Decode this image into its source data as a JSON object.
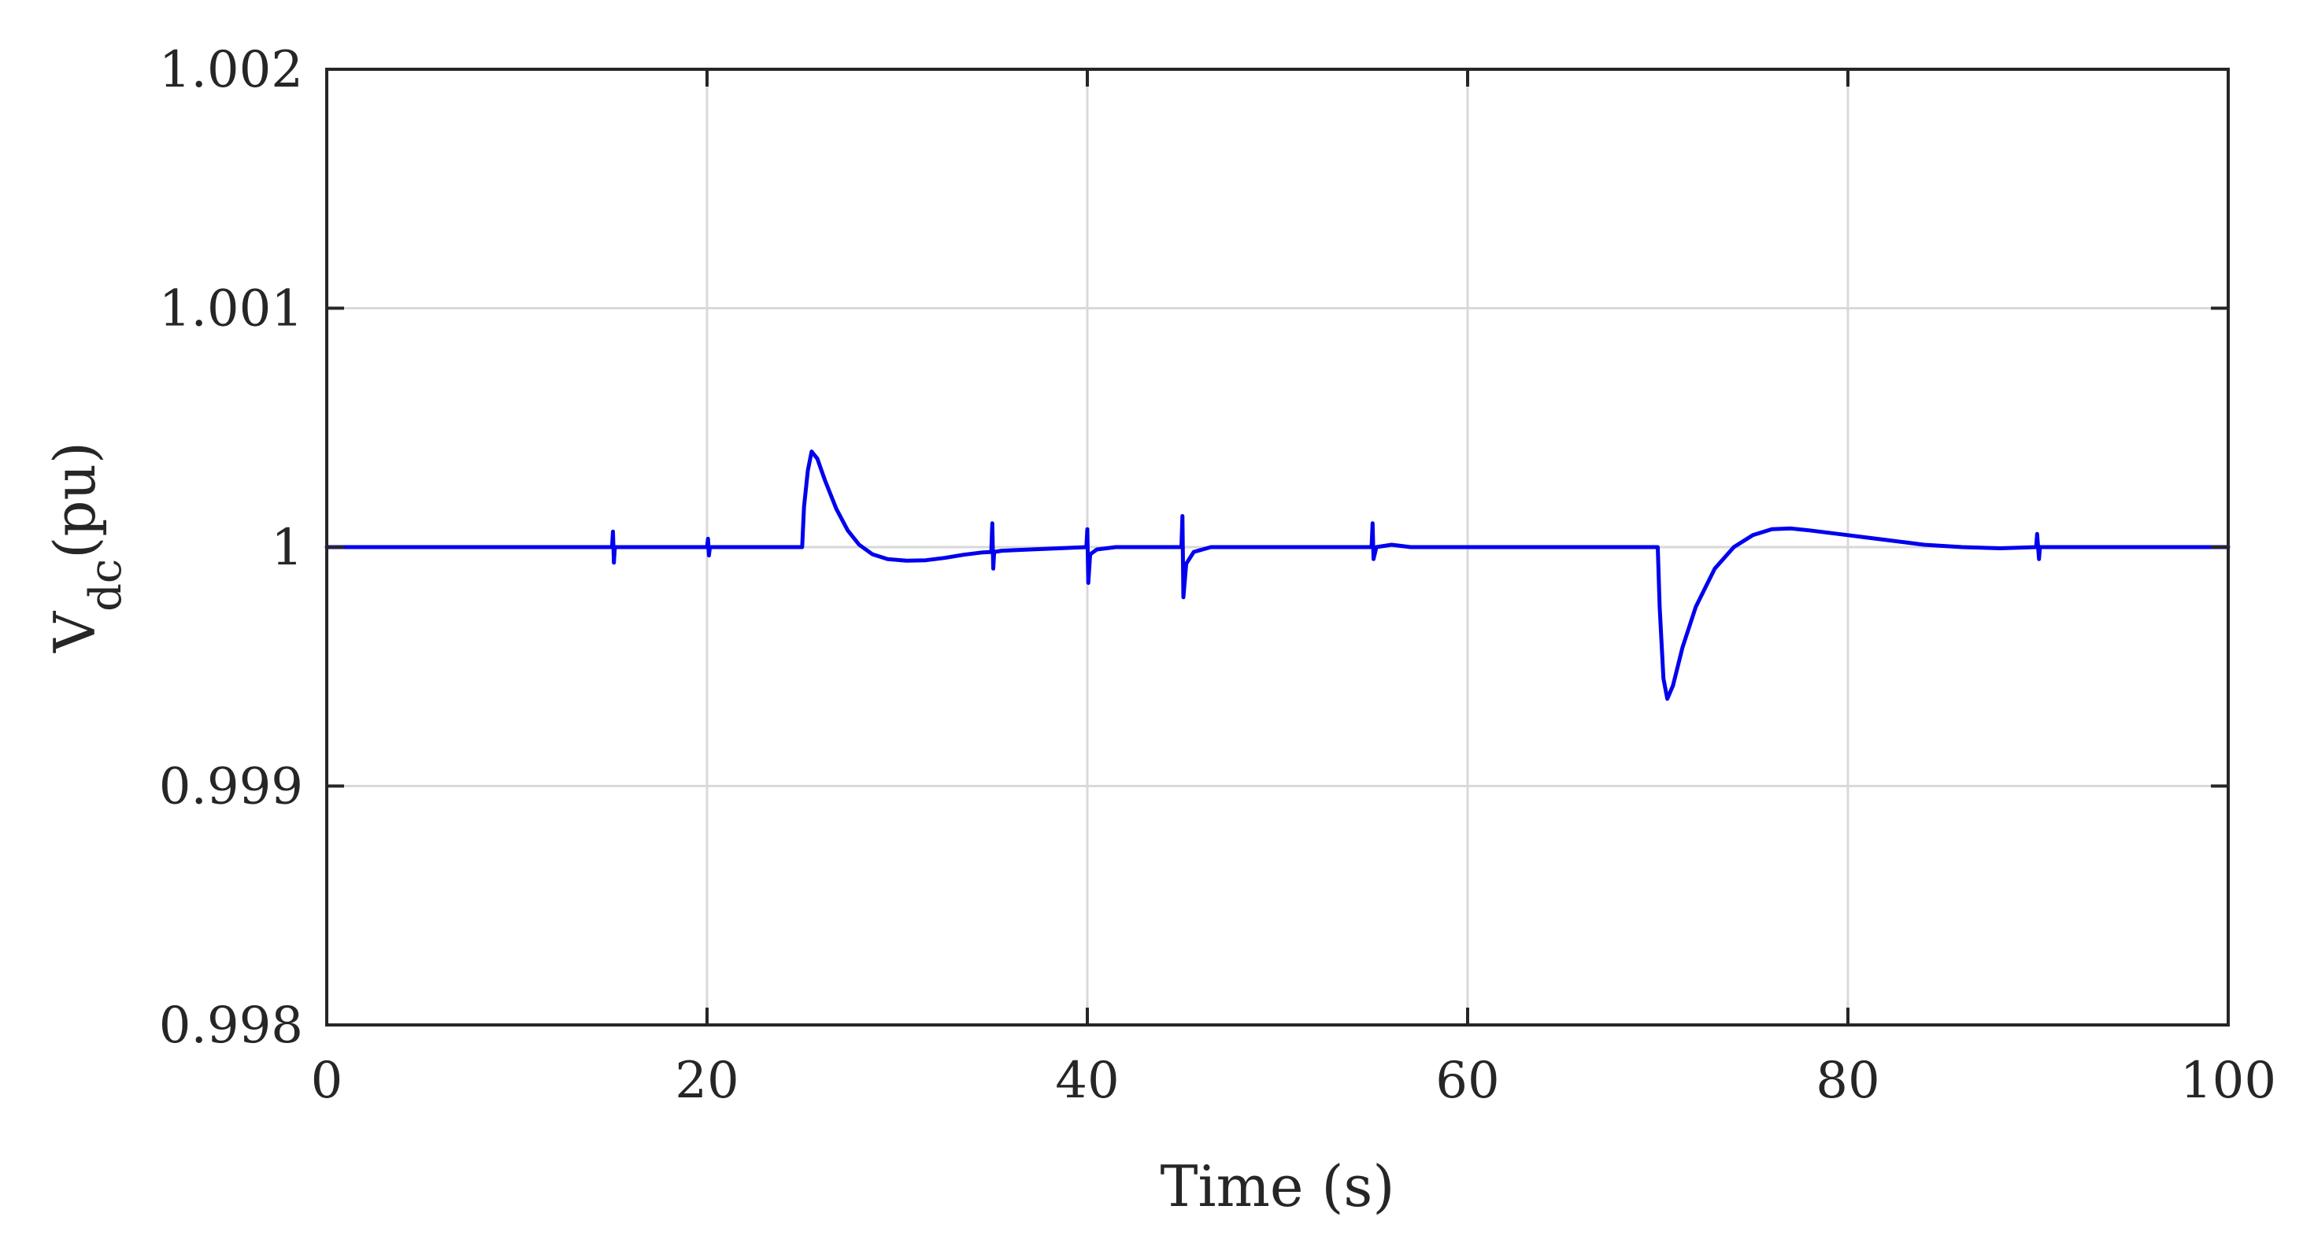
{
  "chart_data": {
    "type": "line",
    "title": "",
    "xlabel": "Time (s)",
    "ylabel": {
      "main": "V",
      "subscript": "dc",
      "unit": "(pu)"
    },
    "xlim": [
      0,
      100
    ],
    "ylim": [
      0.998,
      1.002
    ],
    "xticks": [
      0,
      20,
      40,
      60,
      80,
      100
    ],
    "xtick_labels": [
      "0",
      "20",
      "40",
      "60",
      "80",
      "100"
    ],
    "yticks": [
      0.998,
      0.999,
      1,
      1.001,
      1.002
    ],
    "ytick_labels": [
      "0.998",
      "0.999",
      "1",
      "1.001",
      "1.002"
    ],
    "grid": true,
    "legend": "none",
    "colors": {
      "series": "#0000ee",
      "grid": "#d9d9d9",
      "axes": "#262626"
    },
    "series": [
      {
        "color": "#0000ee",
        "points": [
          [
            0,
            1.0
          ],
          [
            14.9,
            1.0
          ],
          [
            15.0,
            1.0
          ],
          [
            15.05,
            1.000065
          ],
          [
            15.1,
            0.999935
          ],
          [
            15.15,
            1.0
          ],
          [
            15.5,
            1.0
          ],
          [
            19.9,
            1.0
          ],
          [
            20.0,
            1.0
          ],
          [
            20.05,
            1.000035
          ],
          [
            20.1,
            0.999965
          ],
          [
            20.15,
            1.0
          ],
          [
            24.9,
            1.0
          ],
          [
            25.0,
            1.0
          ],
          [
            25.1,
            1.00017
          ],
          [
            25.3,
            1.00032
          ],
          [
            25.5,
            1.0004
          ],
          [
            25.8,
            1.00037
          ],
          [
            26.2,
            1.00028
          ],
          [
            26.8,
            1.00016
          ],
          [
            27.4,
            1.00007
          ],
          [
            28.0,
            1.00001
          ],
          [
            28.7,
            0.99997
          ],
          [
            29.5,
            0.99995
          ],
          [
            30.5,
            0.999943
          ],
          [
            31.5,
            0.999945
          ],
          [
            32.5,
            0.999955
          ],
          [
            33.5,
            0.999968
          ],
          [
            34.5,
            0.999978
          ],
          [
            34.95,
            0.99998
          ],
          [
            35.0,
            1.0001
          ],
          [
            35.05,
            0.99991
          ],
          [
            35.1,
            0.99998
          ],
          [
            35.5,
            0.999985
          ],
          [
            37.0,
            0.99999
          ],
          [
            38.5,
            0.999995
          ],
          [
            39.95,
            1.0
          ],
          [
            40.0,
            1.000075
          ],
          [
            40.05,
            0.99985
          ],
          [
            40.15,
            0.99997
          ],
          [
            40.5,
            0.99999
          ],
          [
            41.5,
            1.0
          ],
          [
            44.95,
            1.0
          ],
          [
            45.0,
            1.00013
          ],
          [
            45.05,
            0.99979
          ],
          [
            45.2,
            0.99993
          ],
          [
            45.6,
            0.99998
          ],
          [
            46.5,
            1.0
          ],
          [
            54.95,
            1.0
          ],
          [
            55.0,
            1.0001
          ],
          [
            55.05,
            0.99995
          ],
          [
            55.2,
            1.0
          ],
          [
            56.0,
            1.00001
          ],
          [
            57.0,
            1.0
          ],
          [
            69.9,
            1.0
          ],
          [
            70.0,
            1.0
          ],
          [
            70.1,
            0.99975
          ],
          [
            70.3,
            0.99945
          ],
          [
            70.5,
            0.999365
          ],
          [
            70.8,
            0.99942
          ],
          [
            71.3,
            0.99958
          ],
          [
            72.0,
            0.99975
          ],
          [
            73.0,
            0.99991
          ],
          [
            74.0,
            1.0
          ],
          [
            75.0,
            1.00005
          ],
          [
            76.0,
            1.000075
          ],
          [
            77.0,
            1.000078
          ],
          [
            78.0,
            1.00007
          ],
          [
            79.0,
            1.00006
          ],
          [
            80.0,
            1.00005
          ],
          [
            81.0,
            1.00004
          ],
          [
            82.0,
            1.00003
          ],
          [
            83.0,
            1.00002
          ],
          [
            84.0,
            1.00001
          ],
          [
            85.0,
            1.000005
          ],
          [
            86.0,
            1.0
          ],
          [
            88.0,
            0.999995
          ],
          [
            89.9,
            1.0
          ],
          [
            89.95,
            1.000055
          ],
          [
            90.05,
            0.99995
          ],
          [
            90.1,
            1.0
          ],
          [
            92.0,
            1.0
          ],
          [
            100.0,
            1.0
          ]
        ]
      }
    ]
  }
}
